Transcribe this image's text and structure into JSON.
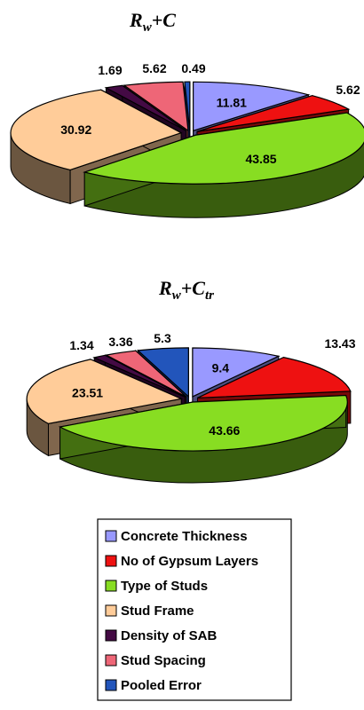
{
  "chart_data": [
    {
      "type": "pie",
      "title": "Rw+C",
      "title_main": "R",
      "title_sub": "w",
      "title_rest": "+C",
      "style": "3d-exploded",
      "slices": [
        {
          "category": "Concrete Thickness",
          "value": 11.81
        },
        {
          "category": "No of Gypsum Layers",
          "value": 5.62
        },
        {
          "category": "Type of Studs",
          "value": 43.85
        },
        {
          "category": "Stud Frame",
          "value": 30.92
        },
        {
          "category": "Density of SAB",
          "value": 1.69
        },
        {
          "category": "Stud Spacing",
          "value": 5.62
        },
        {
          "category": "Pooled Error",
          "value": 0.49
        }
      ]
    },
    {
      "type": "pie",
      "title": "Rw+Ctr",
      "title_main": "R",
      "title_sub": "w",
      "title_rest": "+C",
      "title_sub2": "tr",
      "style": "3d-exploded",
      "slices": [
        {
          "category": "Concrete Thickness",
          "value": 9.4
        },
        {
          "category": "No of Gypsum Layers",
          "value": 13.43
        },
        {
          "category": "Type of Studs",
          "value": 43.66
        },
        {
          "category": "Stud Frame",
          "value": 23.51
        },
        {
          "category": "Density of SAB",
          "value": 1.34
        },
        {
          "category": "Stud Spacing",
          "value": 3.36
        },
        {
          "category": "Pooled Error",
          "value": 5.3
        }
      ]
    }
  ],
  "legend": {
    "placement": "bottom",
    "items": [
      {
        "label": "Concrete Thickness",
        "color": "#9999ff"
      },
      {
        "label": "No of Gypsum Layers",
        "color": "#ee1111"
      },
      {
        "label": "Type of Studs",
        "color": "#88dd22"
      },
      {
        "label": "Stud Frame",
        "color": "#ffcc99"
      },
      {
        "label": "Density of SAB",
        "color": "#440a44"
      },
      {
        "label": "Stud Spacing",
        "color": "#ee6677"
      },
      {
        "label": "Pooled Error",
        "color": "#2255bb"
      }
    ]
  }
}
